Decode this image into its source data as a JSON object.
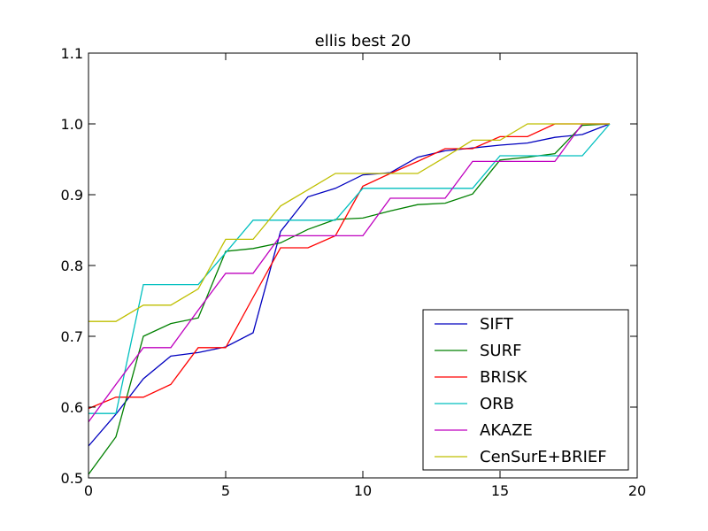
{
  "chart_data": {
    "type": "line",
    "title": "ellis best 20",
    "xlabel": "",
    "ylabel": "",
    "xlim": [
      0,
      20
    ],
    "ylim": [
      0.5,
      1.1
    ],
    "xticks": [
      0,
      5,
      10,
      15,
      20
    ],
    "xtick_labels": [
      "0",
      "5",
      "10",
      "15",
      "20"
    ],
    "yticks": [
      0.5,
      0.6,
      0.7,
      0.8,
      0.9,
      1.0,
      1.1
    ],
    "ytick_labels": [
      "0.5",
      "0.6",
      "0.7",
      "0.8",
      "0.9",
      "1.0",
      "1.1"
    ],
    "grid": false,
    "legend_position": "lower-right",
    "x": [
      0,
      1,
      2,
      3,
      4,
      5,
      6,
      7,
      8,
      9,
      10,
      11,
      12,
      13,
      14,
      15,
      16,
      17,
      18,
      19
    ],
    "series": [
      {
        "name": "SIFT",
        "color": "#0000bf",
        "values": [
          0.545,
          0.59,
          0.64,
          0.672,
          0.677,
          0.685,
          0.705,
          0.848,
          0.897,
          0.909,
          0.928,
          0.931,
          0.953,
          0.962,
          0.966,
          0.97,
          0.973,
          0.981,
          0.985,
          1.0
        ]
      },
      {
        "name": "SURF",
        "color": "#008000",
        "values": [
          0.505,
          0.558,
          0.7,
          0.718,
          0.726,
          0.82,
          0.824,
          0.832,
          0.851,
          0.865,
          0.867,
          0.877,
          0.886,
          0.888,
          0.901,
          0.949,
          0.953,
          0.958,
          0.998,
          1.0
        ]
      },
      {
        "name": "BRISK",
        "color": "#ff0000",
        "values": [
          0.598,
          0.614,
          0.614,
          0.632,
          0.684,
          0.684,
          0.755,
          0.825,
          0.825,
          0.842,
          0.912,
          0.93,
          0.947,
          0.965,
          0.965,
          0.982,
          0.982,
          1.0,
          1.0,
          1.0
        ]
      },
      {
        "name": "ORB",
        "color": "#00bfbf",
        "values": [
          0.591,
          0.591,
          0.773,
          0.773,
          0.773,
          0.818,
          0.864,
          0.864,
          0.864,
          0.864,
          0.909,
          0.909,
          0.909,
          0.909,
          0.909,
          0.955,
          0.955,
          0.955,
          0.955,
          1.0
        ]
      },
      {
        "name": "AKAZE",
        "color": "#bf00bf",
        "values": [
          0.579,
          0.632,
          0.684,
          0.684,
          0.737,
          0.789,
          0.789,
          0.842,
          0.842,
          0.842,
          0.842,
          0.895,
          0.895,
          0.895,
          0.947,
          0.947,
          0.947,
          0.947,
          1.0,
          1.0
        ]
      },
      {
        "name": "CenSurE+BRIEF",
        "color": "#bfbf00",
        "values": [
          0.721,
          0.721,
          0.744,
          0.744,
          0.767,
          0.837,
          0.837,
          0.884,
          0.907,
          0.93,
          0.93,
          0.93,
          0.93,
          0.953,
          0.977,
          0.977,
          1.0,
          1.0,
          1.0,
          1.0
        ]
      }
    ]
  }
}
